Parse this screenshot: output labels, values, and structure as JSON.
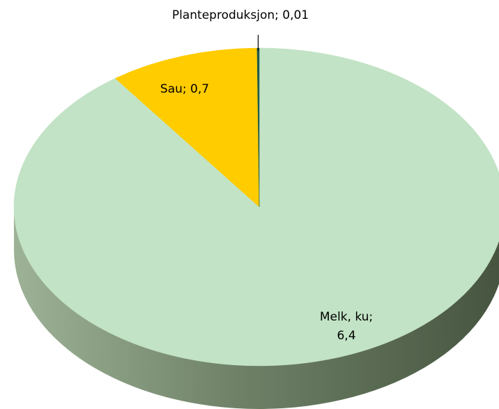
{
  "chart_data": {
    "type": "pie",
    "values": [
      6.4,
      0.7,
      0.01
    ],
    "value_labels": [
      "Melk, ku; 6,4",
      "Sau;  0,7",
      "Planteproduksjon;  0,01"
    ],
    "colors": [
      "#c2e3c5",
      "#ffcc00",
      "#1e5b4c"
    ]
  }
}
